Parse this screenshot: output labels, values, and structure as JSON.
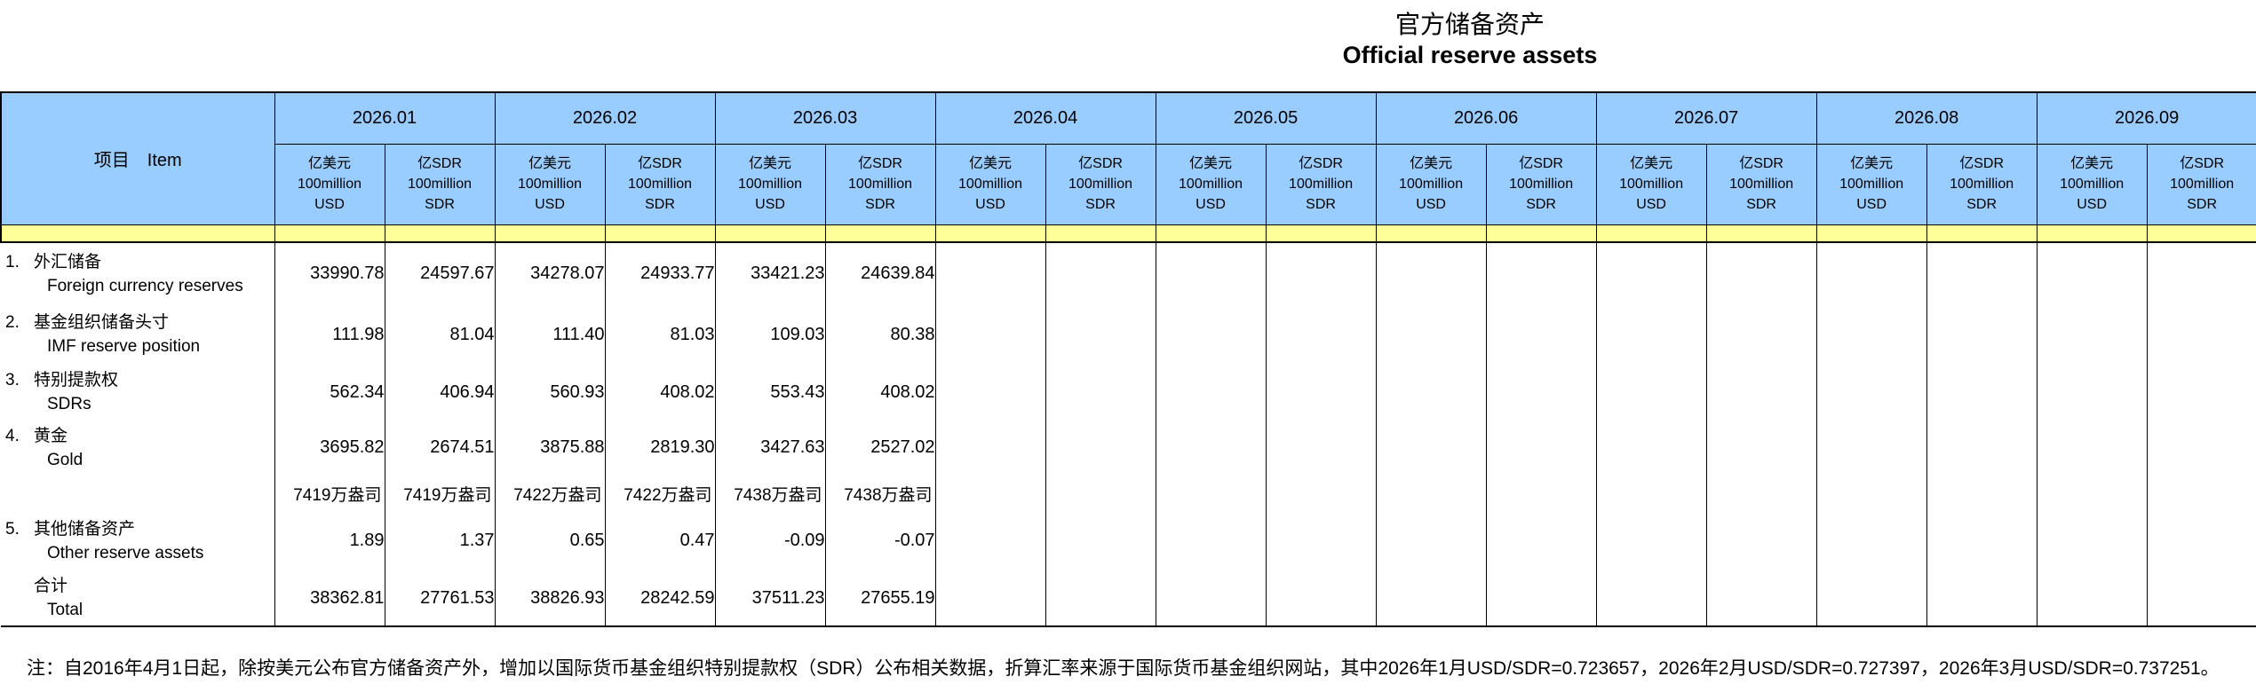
{
  "title": {
    "zh": "官方储备资产",
    "en": "Official reserve assets"
  },
  "table": {
    "item_header": "项目　Item",
    "months": [
      "2026.01",
      "2026.02",
      "2026.03",
      "2026.04",
      "2026.05",
      "2026.06",
      "2026.07",
      "2026.08",
      "2026.09"
    ],
    "unit_usd": {
      "line1": "亿美元",
      "line2": "100million",
      "line3": "USD"
    },
    "unit_sdr": {
      "line1": "亿SDR",
      "line2": "100million",
      "line3": "SDR"
    },
    "rows": [
      {
        "num": "1.",
        "zh": "外汇储备",
        "en": "Foreign currency reserves",
        "values": [
          "33990.78",
          "24597.67",
          "34278.07",
          "24933.77",
          "33421.23",
          "24639.84",
          "",
          "",
          "",
          "",
          "",
          "",
          "",
          "",
          "",
          "",
          "",
          ""
        ]
      },
      {
        "num": "2.",
        "zh": "基金组织储备头寸",
        "en": "IMF reserve position",
        "values": [
          "111.98",
          "81.04",
          "111.40",
          "81.03",
          "109.03",
          "80.38",
          "",
          "",
          "",
          "",
          "",
          "",
          "",
          "",
          "",
          "",
          "",
          ""
        ]
      },
      {
        "num": "3.",
        "zh": "特别提款权",
        "en": "SDRs",
        "values": [
          "562.34",
          "406.94",
          "560.93",
          "408.02",
          "553.43",
          "408.02",
          "",
          "",
          "",
          "",
          "",
          "",
          "",
          "",
          "",
          "",
          "",
          ""
        ]
      },
      {
        "num": "4.",
        "zh": "黄金",
        "en": "Gold",
        "values": [
          "3695.82",
          "2674.51",
          "3875.88",
          "2819.30",
          "3427.63",
          "2527.02",
          "",
          "",
          "",
          "",
          "",
          "",
          "",
          "",
          "",
          "",
          "",
          ""
        ]
      },
      {
        "num": "",
        "zh": "",
        "en": "",
        "values": [
          "7419万盎司",
          "7419万盎司",
          "7422万盎司",
          "7422万盎司",
          "7438万盎司",
          "7438万盎司",
          "",
          "",
          "",
          "",
          "",
          "",
          "",
          "",
          "",
          "",
          "",
          ""
        ]
      },
      {
        "num": "5.",
        "zh": "其他储备资产",
        "en": "Other reserve assets",
        "values": [
          "1.89",
          "1.37",
          "0.65",
          "0.47",
          "-0.09",
          "-0.07",
          "",
          "",
          "",
          "",
          "",
          "",
          "",
          "",
          "",
          "",
          "",
          ""
        ]
      },
      {
        "num": "",
        "zh": "合计",
        "en": "Total",
        "values": [
          "38362.81",
          "27761.53",
          "38826.93",
          "28242.59",
          "37511.23",
          "27655.19",
          "",
          "",
          "",
          "",
          "",
          "",
          "",
          "",
          "",
          "",
          "",
          ""
        ]
      }
    ]
  },
  "note": "注：自2016年4月1日起，除按美元公布官方储备资产外，增加以国际货币基金组织特别提款权（SDR）公布相关数据，折算汇率来源于国际货币基金组织网站，其中2026年1月USD/SDR=0.723657，2026年2月USD/SDR=0.727397，2026年3月USD/SDR=0.737251。",
  "colors": {
    "header_blue": "#99CCFF",
    "band_yellow": "#FFFF99",
    "border": "#000000"
  }
}
